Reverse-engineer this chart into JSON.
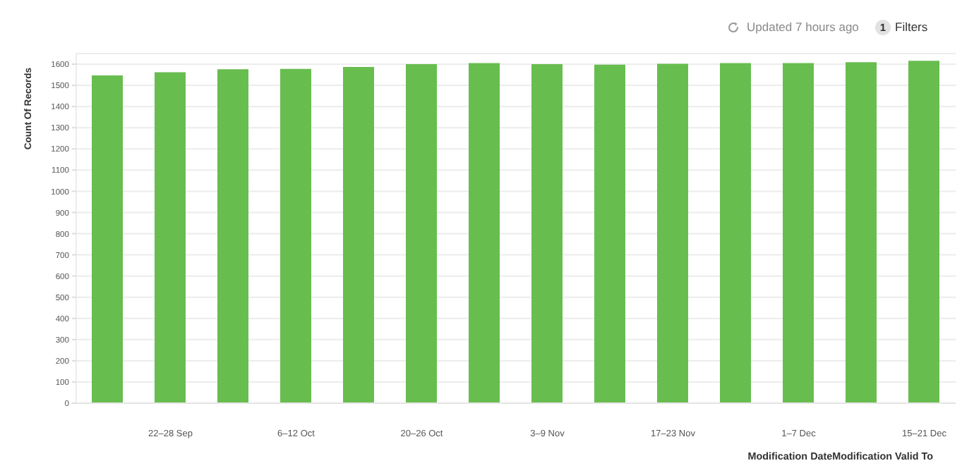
{
  "chart_data": {
    "type": "bar",
    "ylabel": "Count Of Records",
    "xlabel": "Modification DateModification Valid To",
    "annotations": [
      "Updated 7 hours ago",
      "1",
      "Filters"
    ],
    "categories": [
      null,
      "22–28 Sep",
      null,
      "6–12 Oct",
      null,
      "20–26 Oct",
      null,
      "3–9 Nov",
      null,
      "17–23 Nov",
      null,
      "1–7 Dec",
      null,
      "15–21 Dec"
    ],
    "values": [
      1547,
      1562,
      1576,
      1578,
      1587,
      1600,
      1605,
      1600,
      1598,
      1602,
      1605,
      1605,
      1609,
      1616
    ],
    "color": "#68bd4f",
    "ylim": [
      0,
      1650
    ],
    "yticks": [
      0,
      100,
      200,
      300,
      400,
      500,
      600,
      700,
      800,
      900,
      1000,
      1100,
      1200,
      1300,
      1400,
      1500,
      1600
    ],
    "grid": "y"
  }
}
